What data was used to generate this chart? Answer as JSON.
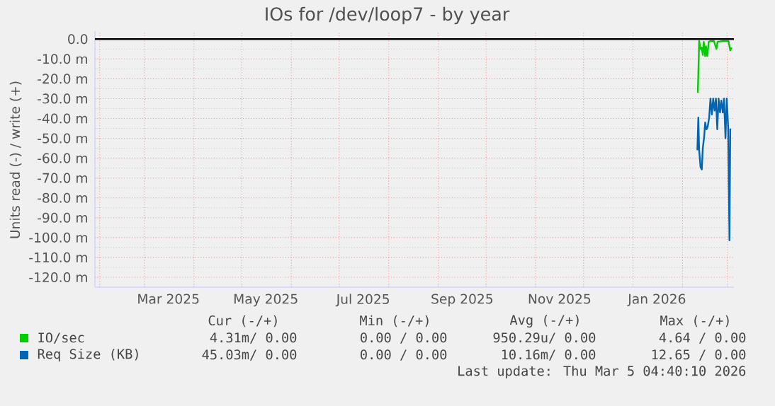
{
  "chart_data": {
    "type": "line",
    "title": "IOs for /dev/loop7 - by year",
    "ylabel": "Units read (-) / write (+)",
    "xlim": [
      "2025-01-29",
      "2026-03-05T04:40"
    ],
    "ylim": [
      -125,
      4
    ],
    "xticks": [
      {
        "value": "2025-02-01",
        "label": null
      },
      {
        "value": "2025-03-01",
        "label": null
      },
      {
        "value": "2025-04-01",
        "label": null
      },
      {
        "value": "2025-05-01",
        "label": null
      },
      {
        "value": "2025-06-01",
        "label": null
      },
      {
        "value": "2025-07-01",
        "label": null
      },
      {
        "value": "2025-08-01",
        "label": null
      },
      {
        "value": "2025-09-01",
        "label": null
      },
      {
        "value": "2025-10-01",
        "label": null
      },
      {
        "value": "2025-11-01",
        "label": null
      },
      {
        "value": "2025-12-01",
        "label": null
      },
      {
        "value": "2026-01-01",
        "label": null
      },
      {
        "value": "2026-02-01",
        "label": null
      },
      {
        "value": "2026-03-01",
        "label": null
      },
      {
        "value": "2025-03-16",
        "label": "Mar 2025"
      },
      {
        "value": "2025-05-16",
        "label": "May 2025"
      },
      {
        "value": "2025-07-16",
        "label": "Jul 2025"
      },
      {
        "value": "2025-09-16",
        "label": "Sep 2025"
      },
      {
        "value": "2025-11-16",
        "label": "Nov 2025"
      },
      {
        "value": "2026-01-16",
        "label": "Jan 2026"
      }
    ],
    "yticks": [
      {
        "value": 0,
        "label": "0.0"
      },
      {
        "value": -10,
        "label": "-10.0 m"
      },
      {
        "value": -20,
        "label": "-20.0 m"
      },
      {
        "value": -30,
        "label": "-30.0 m"
      },
      {
        "value": -40,
        "label": "-40.0 m"
      },
      {
        "value": -50,
        "label": "-50.0 m"
      },
      {
        "value": -60,
        "label": "-60.0 m"
      },
      {
        "value": -70,
        "label": "-70.0 m"
      },
      {
        "value": -80,
        "label": "-80.0 m"
      },
      {
        "value": -90,
        "label": "-90.0 m"
      },
      {
        "value": -100,
        "label": "-100.0 m"
      },
      {
        "value": -110,
        "label": "-110.0 m"
      },
      {
        "value": -120,
        "label": "-120.0 m"
      }
    ],
    "grid": true,
    "legend": "bottom",
    "ref_lines": [
      {
        "axis": "y",
        "value": 0,
        "color": "#000000"
      }
    ],
    "series": [
      {
        "name": "IO/sec",
        "color": "#00cc00",
        "x": [
          "2026-02-10T14:00",
          "2026-02-11T05:00",
          "2026-02-11T10:00",
          "2026-02-12T07:00",
          "2026-02-13T02:00",
          "2026-02-13T17:00",
          "2026-02-14T07:00",
          "2026-02-15T05:00",
          "2026-02-15T17:00",
          "2026-02-16T12:00",
          "2026-02-17T10:00",
          "2026-02-18T12:00",
          "2026-02-20T17:00",
          "2026-02-22T05:00",
          "2026-02-23T00:00",
          "2026-02-26T10:00",
          "2026-03-01T19:00",
          "2026-03-02T22:00",
          "2026-03-03T19:00"
        ],
        "values": [
          -27,
          -8.6,
          -1,
          -5,
          -4.3,
          -8,
          -1.4,
          -8.6,
          -3.6,
          -8.6,
          -1.4,
          -1,
          -1,
          -5,
          -1.4,
          -1,
          -1,
          -5.7,
          -4.3
        ]
      },
      {
        "name": "Req Size (KB)",
        "color": "#0066b3",
        "x": [
          "2026-02-10T07:00",
          "2026-02-10T22:00",
          "2026-02-11T10:00",
          "2026-02-12T07:00",
          "2026-02-13T02:00",
          "2026-02-13T17:00",
          "2026-02-14T14:00",
          "2026-02-15T05:00",
          "2026-02-16T00:00",
          "2026-02-16T19:00",
          "2026-02-17T17:00",
          "2026-02-18T12:00",
          "2026-02-19T10:00",
          "2026-02-20T05:00",
          "2026-02-21T02:00",
          "2026-02-21T22:00",
          "2026-02-22T19:00",
          "2026-02-23T14:00",
          "2026-02-24T12:00",
          "2026-02-25T07:00",
          "2026-02-26T05:00",
          "2026-02-27T00:00",
          "2026-02-27T22:00",
          "2026-02-28T17:00",
          "2026-03-01T14:00",
          "2026-03-02T10:00",
          "2026-03-02T22:00",
          "2026-03-03T12:00"
        ],
        "values": [
          -56,
          -39.5,
          -56,
          -64.5,
          -65.7,
          -55,
          -49,
          -42,
          -45.5,
          -44,
          -39.5,
          -30,
          -38,
          -30,
          -36,
          -30,
          -45.5,
          -30,
          -37,
          -31,
          -37,
          -30,
          -50,
          -30,
          -44,
          -101.4,
          -45.5,
          -45.5
        ]
      }
    ],
    "annotations": [
      "Cur (-/+)",
      "Min (-/+)",
      "Avg (-/+)",
      "Max (-/+)",
      "4.31m/ 0.00",
      "0.00 / 0.00",
      "950.29u/ 0.00",
      "4.64 / 0.00",
      "45.03m/ 0.00",
      "0.00 / 0.00",
      "10.16m/ 0.00",
      "12.65 / 0.00",
      "Last update: Thu Mar 5 04:40:10 2026"
    ]
  }
}
